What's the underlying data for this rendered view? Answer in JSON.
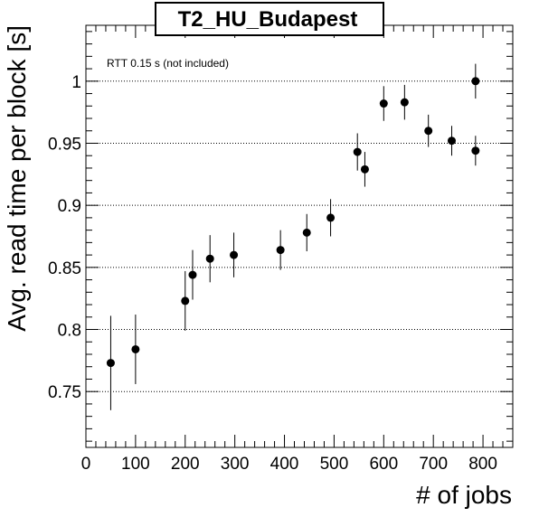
{
  "chart_data": {
    "type": "scatter",
    "title": "T2_HU_Budapest",
    "xlabel": "# of jobs",
    "ylabel": "Avg. read time per block [s]",
    "annotation": "RTT 0.15 s (not included)",
    "xlim": [
      0,
      860
    ],
    "ylim": [
      0.705,
      1.045
    ],
    "x_ticks": [
      0,
      100,
      200,
      300,
      400,
      500,
      600,
      700,
      800
    ],
    "x_tick_labels": [
      "0",
      "100",
      "200",
      "300",
      "400",
      "500",
      "600",
      "700",
      "800"
    ],
    "y_ticks": [
      0.75,
      0.8,
      0.85,
      0.9,
      0.95,
      1.0
    ],
    "y_tick_labels": [
      "0.75",
      "0.8",
      "0.85",
      "0.9",
      "0.95",
      "1"
    ],
    "y_gridlines": true,
    "colors": {
      "marker": "#000000",
      "grid": "#000000",
      "frame": "#000000"
    },
    "series": [
      {
        "points": [
          {
            "x": 50,
            "y": 0.773,
            "err": 0.038
          },
          {
            "x": 100,
            "y": 0.784,
            "err": 0.028
          },
          {
            "x": 200,
            "y": 0.823,
            "err": 0.024
          },
          {
            "x": 215,
            "y": 0.844,
            "err": 0.02
          },
          {
            "x": 250,
            "y": 0.857,
            "err": 0.019
          },
          {
            "x": 298,
            "y": 0.86,
            "err": 0.018
          },
          {
            "x": 392,
            "y": 0.864,
            "err": 0.016
          },
          {
            "x": 445,
            "y": 0.878,
            "err": 0.015
          },
          {
            "x": 493,
            "y": 0.89,
            "err": 0.015
          },
          {
            "x": 547,
            "y": 0.943,
            "err": 0.015
          },
          {
            "x": 562,
            "y": 0.929,
            "err": 0.014
          },
          {
            "x": 600,
            "y": 0.982,
            "err": 0.014
          },
          {
            "x": 642,
            "y": 0.983,
            "err": 0.014
          },
          {
            "x": 690,
            "y": 0.96,
            "err": 0.013
          },
          {
            "x": 737,
            "y": 0.952,
            "err": 0.012
          },
          {
            "x": 785,
            "y": 1.0,
            "err": 0.014
          },
          {
            "x": 785,
            "y": 0.944,
            "err": 0.012
          }
        ]
      }
    ]
  }
}
